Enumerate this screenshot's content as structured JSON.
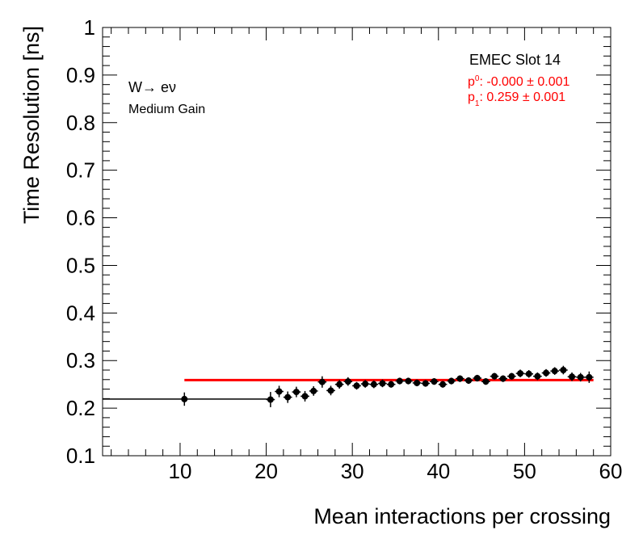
{
  "chart_data": {
    "type": "scatter",
    "title": "",
    "xlabel": "Mean interactions per crossing",
    "ylabel": "Time Resolution [ns]",
    "xlim": [
      1,
      60
    ],
    "ylim": [
      0.1,
      1
    ],
    "x_ticks": [
      10,
      20,
      30,
      40,
      50,
      60
    ],
    "x_tick_labels": [
      "10",
      "20",
      "30",
      "40",
      "50",
      "60"
    ],
    "y_ticks": [
      0.1,
      0.2,
      0.3,
      0.4,
      0.5,
      0.6,
      0.7,
      0.8,
      0.9,
      1.0
    ],
    "y_tick_labels": [
      "0.1",
      "0.2",
      "0.3",
      "0.4",
      "0.5",
      "0.6",
      "0.7",
      "0.8",
      "0.9",
      "1"
    ],
    "annotations": {
      "process": "W→ eν",
      "gain": "Medium Gain",
      "slot": "EMEC Slot 14",
      "fit_p0_label": "p",
      "fit_p0_sub": "0",
      "fit_p0_value": ": -0.000 ± 0.001",
      "fit_p1_label": "p",
      "fit_p1_sub": "1",
      "fit_p1_value": ": 0.259 ± 0.001"
    },
    "series": [
      {
        "name": "data",
        "color": "#000000",
        "points": [
          {
            "x": 10.5,
            "y": 0.219,
            "xerr_lo": 9.5,
            "xerr_hi": 10.0,
            "yerr": 0.014
          },
          {
            "x": 20.5,
            "y": 0.218,
            "xerr_lo": 0.5,
            "xerr_hi": 0.5,
            "yerr": 0.016
          },
          {
            "x": 21.5,
            "y": 0.235,
            "xerr_lo": 0.5,
            "xerr_hi": 0.5,
            "yerr": 0.012
          },
          {
            "x": 22.5,
            "y": 0.223,
            "xerr_lo": 0.5,
            "xerr_hi": 0.5,
            "yerr": 0.012
          },
          {
            "x": 23.5,
            "y": 0.234,
            "xerr_lo": 0.5,
            "xerr_hi": 0.5,
            "yerr": 0.011
          },
          {
            "x": 24.5,
            "y": 0.225,
            "xerr_lo": 0.5,
            "xerr_hi": 0.5,
            "yerr": 0.011
          },
          {
            "x": 25.5,
            "y": 0.236,
            "xerr_lo": 0.5,
            "xerr_hi": 0.5,
            "yerr": 0.01
          },
          {
            "x": 26.5,
            "y": 0.255,
            "xerr_lo": 0.5,
            "xerr_hi": 0.5,
            "yerr": 0.012
          },
          {
            "x": 27.5,
            "y": 0.237,
            "xerr_lo": 0.5,
            "xerr_hi": 0.5,
            "yerr": 0.01
          },
          {
            "x": 28.5,
            "y": 0.25,
            "xerr_lo": 0.5,
            "xerr_hi": 0.5,
            "yerr": 0.009
          },
          {
            "x": 29.5,
            "y": 0.256,
            "xerr_lo": 0.5,
            "xerr_hi": 0.5,
            "yerr": 0.009
          },
          {
            "x": 30.5,
            "y": 0.247,
            "xerr_lo": 0.5,
            "xerr_hi": 0.5,
            "yerr": 0.008
          },
          {
            "x": 31.5,
            "y": 0.251,
            "xerr_lo": 0.5,
            "xerr_hi": 0.5,
            "yerr": 0.008
          },
          {
            "x": 32.5,
            "y": 0.25,
            "xerr_lo": 0.5,
            "xerr_hi": 0.5,
            "yerr": 0.008
          },
          {
            "x": 33.5,
            "y": 0.252,
            "xerr_lo": 0.5,
            "xerr_hi": 0.5,
            "yerr": 0.008
          },
          {
            "x": 34.5,
            "y": 0.25,
            "xerr_lo": 0.5,
            "xerr_hi": 0.5,
            "yerr": 0.007
          },
          {
            "x": 35.5,
            "y": 0.257,
            "xerr_lo": 0.5,
            "xerr_hi": 0.5,
            "yerr": 0.007
          },
          {
            "x": 36.5,
            "y": 0.257,
            "xerr_lo": 0.5,
            "xerr_hi": 0.5,
            "yerr": 0.007
          },
          {
            "x": 37.5,
            "y": 0.253,
            "xerr_lo": 0.5,
            "xerr_hi": 0.5,
            "yerr": 0.007
          },
          {
            "x": 38.5,
            "y": 0.252,
            "xerr_lo": 0.5,
            "xerr_hi": 0.5,
            "yerr": 0.007
          },
          {
            "x": 39.5,
            "y": 0.256,
            "xerr_lo": 0.5,
            "xerr_hi": 0.5,
            "yerr": 0.007
          },
          {
            "x": 40.5,
            "y": 0.25,
            "xerr_lo": 0.5,
            "xerr_hi": 0.5,
            "yerr": 0.007
          },
          {
            "x": 41.5,
            "y": 0.257,
            "xerr_lo": 0.5,
            "xerr_hi": 0.5,
            "yerr": 0.007
          },
          {
            "x": 42.5,
            "y": 0.262,
            "xerr_lo": 0.5,
            "xerr_hi": 0.5,
            "yerr": 0.007
          },
          {
            "x": 43.5,
            "y": 0.258,
            "xerr_lo": 0.5,
            "xerr_hi": 0.5,
            "yerr": 0.007
          },
          {
            "x": 44.5,
            "y": 0.263,
            "xerr_lo": 0.5,
            "xerr_hi": 0.5,
            "yerr": 0.007
          },
          {
            "x": 45.5,
            "y": 0.256,
            "xerr_lo": 0.5,
            "xerr_hi": 0.5,
            "yerr": 0.007
          },
          {
            "x": 46.5,
            "y": 0.267,
            "xerr_lo": 0.5,
            "xerr_hi": 0.5,
            "yerr": 0.007
          },
          {
            "x": 47.5,
            "y": 0.262,
            "xerr_lo": 0.5,
            "xerr_hi": 0.5,
            "yerr": 0.007
          },
          {
            "x": 48.5,
            "y": 0.267,
            "xerr_lo": 0.5,
            "xerr_hi": 0.5,
            "yerr": 0.007
          },
          {
            "x": 49.5,
            "y": 0.273,
            "xerr_lo": 0.5,
            "xerr_hi": 0.5,
            "yerr": 0.008
          },
          {
            "x": 50.5,
            "y": 0.272,
            "xerr_lo": 0.5,
            "xerr_hi": 0.5,
            "yerr": 0.008
          },
          {
            "x": 51.5,
            "y": 0.267,
            "xerr_lo": 0.5,
            "xerr_hi": 0.5,
            "yerr": 0.008
          },
          {
            "x": 52.5,
            "y": 0.274,
            "xerr_lo": 0.5,
            "xerr_hi": 0.5,
            "yerr": 0.008
          },
          {
            "x": 53.5,
            "y": 0.278,
            "xerr_lo": 0.5,
            "xerr_hi": 0.5,
            "yerr": 0.008
          },
          {
            "x": 54.5,
            "y": 0.28,
            "xerr_lo": 0.5,
            "xerr_hi": 0.5,
            "yerr": 0.009
          },
          {
            "x": 55.5,
            "y": 0.266,
            "xerr_lo": 0.5,
            "xerr_hi": 0.5,
            "yerr": 0.009
          },
          {
            "x": 56.5,
            "y": 0.265,
            "xerr_lo": 0.5,
            "xerr_hi": 0.5,
            "yerr": 0.009
          },
          {
            "x": 57.5,
            "y": 0.265,
            "xerr_lo": 0.5,
            "xerr_hi": 0.5,
            "yerr": 0.012
          }
        ]
      },
      {
        "name": "fit",
        "type": "line",
        "color": "#ff0000",
        "x": [
          10.5,
          58
        ],
        "y": [
          0.259,
          0.259
        ]
      }
    ]
  }
}
